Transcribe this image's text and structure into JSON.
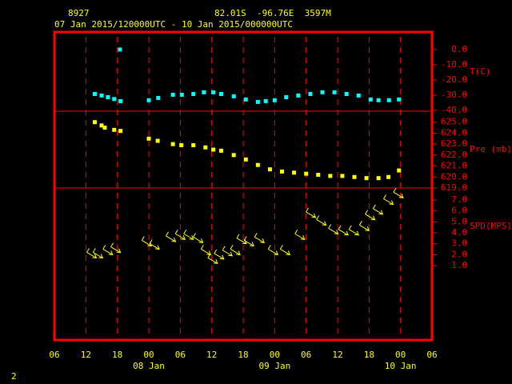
{
  "header": {
    "station": "8927",
    "location": "82.01S  -96.76E  3597M",
    "period": "07 Jan 2015/120000UTC - 10 Jan 2015/000000UTC",
    "page": "2"
  },
  "chart_data": [
    {
      "type": "scatter",
      "axis_label": "T(C)",
      "color": "#00ffff",
      "xlim": [
        6,
        78
      ],
      "ylim": [
        -40.5,
        11.5
      ],
      "yticks": [
        {
          "value": 0,
          "label": "0.0"
        },
        {
          "value": -10,
          "label": "-10.0"
        },
        {
          "value": -20,
          "label": "-20.0"
        },
        {
          "value": -30,
          "label": "-30.0"
        },
        {
          "value": -40,
          "label": "-40.0"
        }
      ],
      "x": [
        13.7,
        15.0,
        16.2,
        17.4,
        18.6,
        18.5,
        24.0,
        25.8,
        28.6,
        30.3,
        32.5,
        34.5,
        36.3,
        37.8,
        40.2,
        42.5,
        44.8,
        46.3,
        48.0,
        50.2,
        52.5,
        54.8,
        57.1,
        59.4,
        61.7,
        64.0,
        66.3,
        67.8,
        69.8,
        71.7
      ],
      "values": [
        -29.2,
        -30.2,
        -31.3,
        -32.5,
        -33.9,
        0.0,
        -33.3,
        -31.8,
        -29.7,
        -29.7,
        -29.2,
        -28.1,
        -28.1,
        -29.2,
        -30.7,
        -32.8,
        -34.4,
        -33.9,
        -33.3,
        -31.3,
        -30.2,
        -29.2,
        -28.1,
        -28.1,
        -29.2,
        -30.2,
        -32.8,
        -33.3,
        -33.3,
        -32.8
      ]
    },
    {
      "type": "scatter",
      "axis_label": "Pre (mb)",
      "color": "#ffff00",
      "xlim": [
        6,
        78
      ],
      "ylim": [
        619,
        626
      ],
      "yticks": [
        {
          "value": 625,
          "label": "625.0"
        },
        {
          "value": 624,
          "label": "624.0"
        },
        {
          "value": 623,
          "label": "623.0"
        },
        {
          "value": 622,
          "label": "622.0"
        },
        {
          "value": 621,
          "label": "621.0"
        },
        {
          "value": 620,
          "label": "620.0"
        },
        {
          "value": 619,
          "label": "619.0"
        }
      ],
      "x": [
        13.7,
        15.0,
        15.6,
        17.4,
        18.6,
        24.0,
        25.7,
        28.6,
        30.2,
        32.5,
        34.8,
        36.3,
        37.8,
        40.2,
        42.5,
        44.8,
        47.1,
        49.4,
        51.7,
        54.0,
        56.3,
        58.6,
        60.9,
        63.2,
        65.5,
        67.8,
        69.7,
        71.7
      ],
      "values": [
        625.0,
        624.7,
        624.5,
        624.3,
        624.2,
        623.5,
        623.3,
        623.0,
        622.9,
        622.9,
        622.7,
        622.5,
        622.4,
        622.0,
        621.6,
        621.1,
        620.7,
        620.5,
        620.4,
        620.3,
        620.2,
        620.1,
        620.1,
        620.0,
        619.9,
        619.9,
        620.0,
        620.6
      ]
    },
    {
      "type": "wind",
      "axis_label": "SPD(MPS)",
      "color": "#ffff00",
      "xlim": [
        6,
        78
      ],
      "ylim": [
        -5.8,
        8.1
      ],
      "yticks": [
        {
          "value": 7,
          "label": "7.0"
        },
        {
          "value": 6,
          "label": "6.0"
        },
        {
          "value": 5,
          "label": "5.0"
        },
        {
          "value": 4,
          "label": "4.0"
        },
        {
          "value": 3,
          "label": "3.0"
        },
        {
          "value": 2,
          "label": "2.0"
        },
        {
          "value": 1,
          "label": "1.0"
        }
      ],
      "x": [
        14.0,
        15.2,
        17.1,
        18.6,
        24.5,
        26.0,
        29.1,
        30.9,
        32.5,
        34.3,
        35.8,
        37.1,
        38.3,
        39.9,
        41.4,
        42.6,
        44.0,
        46.0,
        48.6,
        50.9,
        53.7,
        55.8,
        57.8,
        60.1,
        62.0,
        64.0,
        66.0,
        67.1,
        68.6,
        70.6,
        72.5
      ],
      "values": [
        1.7,
        1.7,
        2.0,
        2.2,
        2.8,
        2.5,
        3.2,
        3.4,
        3.4,
        3.1,
        2.0,
        1.2,
        1.6,
        1.9,
        2.0,
        3.0,
        2.8,
        3.1,
        2.0,
        2.0,
        3.4,
        5.4,
        4.7,
        3.9,
        3.8,
        3.8,
        4.2,
        5.2,
        5.7,
        6.6,
        7.2
      ],
      "xticks": [
        {
          "value": 6,
          "label": "06"
        },
        {
          "value": 12,
          "label": "12"
        },
        {
          "value": 18,
          "label": "18"
        },
        {
          "value": 24,
          "label": "00"
        },
        {
          "value": 30,
          "label": "06"
        },
        {
          "value": 36,
          "label": "12"
        },
        {
          "value": 42,
          "label": "18"
        },
        {
          "value": 48,
          "label": "00"
        },
        {
          "value": 54,
          "label": "06"
        },
        {
          "value": 60,
          "label": "12"
        },
        {
          "value": 66,
          "label": "18"
        },
        {
          "value": 72,
          "label": "00"
        },
        {
          "value": 78,
          "label": "06"
        }
      ],
      "date_labels": [
        {
          "value": 24,
          "label": "08 Jan"
        },
        {
          "value": 48,
          "label": "09 Jan"
        },
        {
          "value": 72,
          "label": "10 Jan"
        }
      ]
    }
  ]
}
